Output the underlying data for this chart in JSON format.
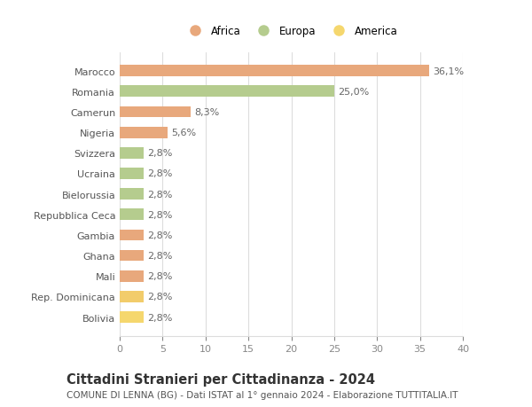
{
  "categories": [
    "Bolivia",
    "Rep. Dominicana",
    "Mali",
    "Ghana",
    "Gambia",
    "Repubblica Ceca",
    "Bielorussia",
    "Ucraina",
    "Svizzera",
    "Nigeria",
    "Camerun",
    "Romania",
    "Marocco"
  ],
  "values": [
    2.8,
    2.8,
    2.8,
    2.8,
    2.8,
    2.8,
    2.8,
    2.8,
    2.8,
    5.6,
    8.3,
    25.0,
    36.1
  ],
  "labels": [
    "2,8%",
    "2,8%",
    "2,8%",
    "2,8%",
    "2,8%",
    "2,8%",
    "2,8%",
    "2,8%",
    "2,8%",
    "5,6%",
    "8,3%",
    "25,0%",
    "36,1%"
  ],
  "colors": [
    "#f5d76e",
    "#f2cc6b",
    "#e8a87c",
    "#e8a87c",
    "#e8a87c",
    "#b5cc8e",
    "#b5cc8e",
    "#b5cc8e",
    "#b5cc8e",
    "#e8a87c",
    "#e8a87c",
    "#b5cc8e",
    "#e8a87c"
  ],
  "legend": [
    {
      "label": "Africa",
      "color": "#e8a87c"
    },
    {
      "label": "Europa",
      "color": "#b5cc8e"
    },
    {
      "label": "America",
      "color": "#f5d76e"
    }
  ],
  "title": "Cittadini Stranieri per Cittadinanza - 2024",
  "subtitle": "COMUNE DI LENNA (BG) - Dati ISTAT al 1° gennaio 2024 - Elaborazione TUTTITALIA.IT",
  "xlim": [
    0,
    40
  ],
  "xticks": [
    0,
    5,
    10,
    15,
    20,
    25,
    30,
    35,
    40
  ],
  "background_color": "#ffffff",
  "grid_color": "#dddddd",
  "bar_height": 0.55,
  "label_fontsize": 8,
  "title_fontsize": 10.5,
  "subtitle_fontsize": 7.5,
  "tick_fontsize": 8,
  "category_fontsize": 8
}
